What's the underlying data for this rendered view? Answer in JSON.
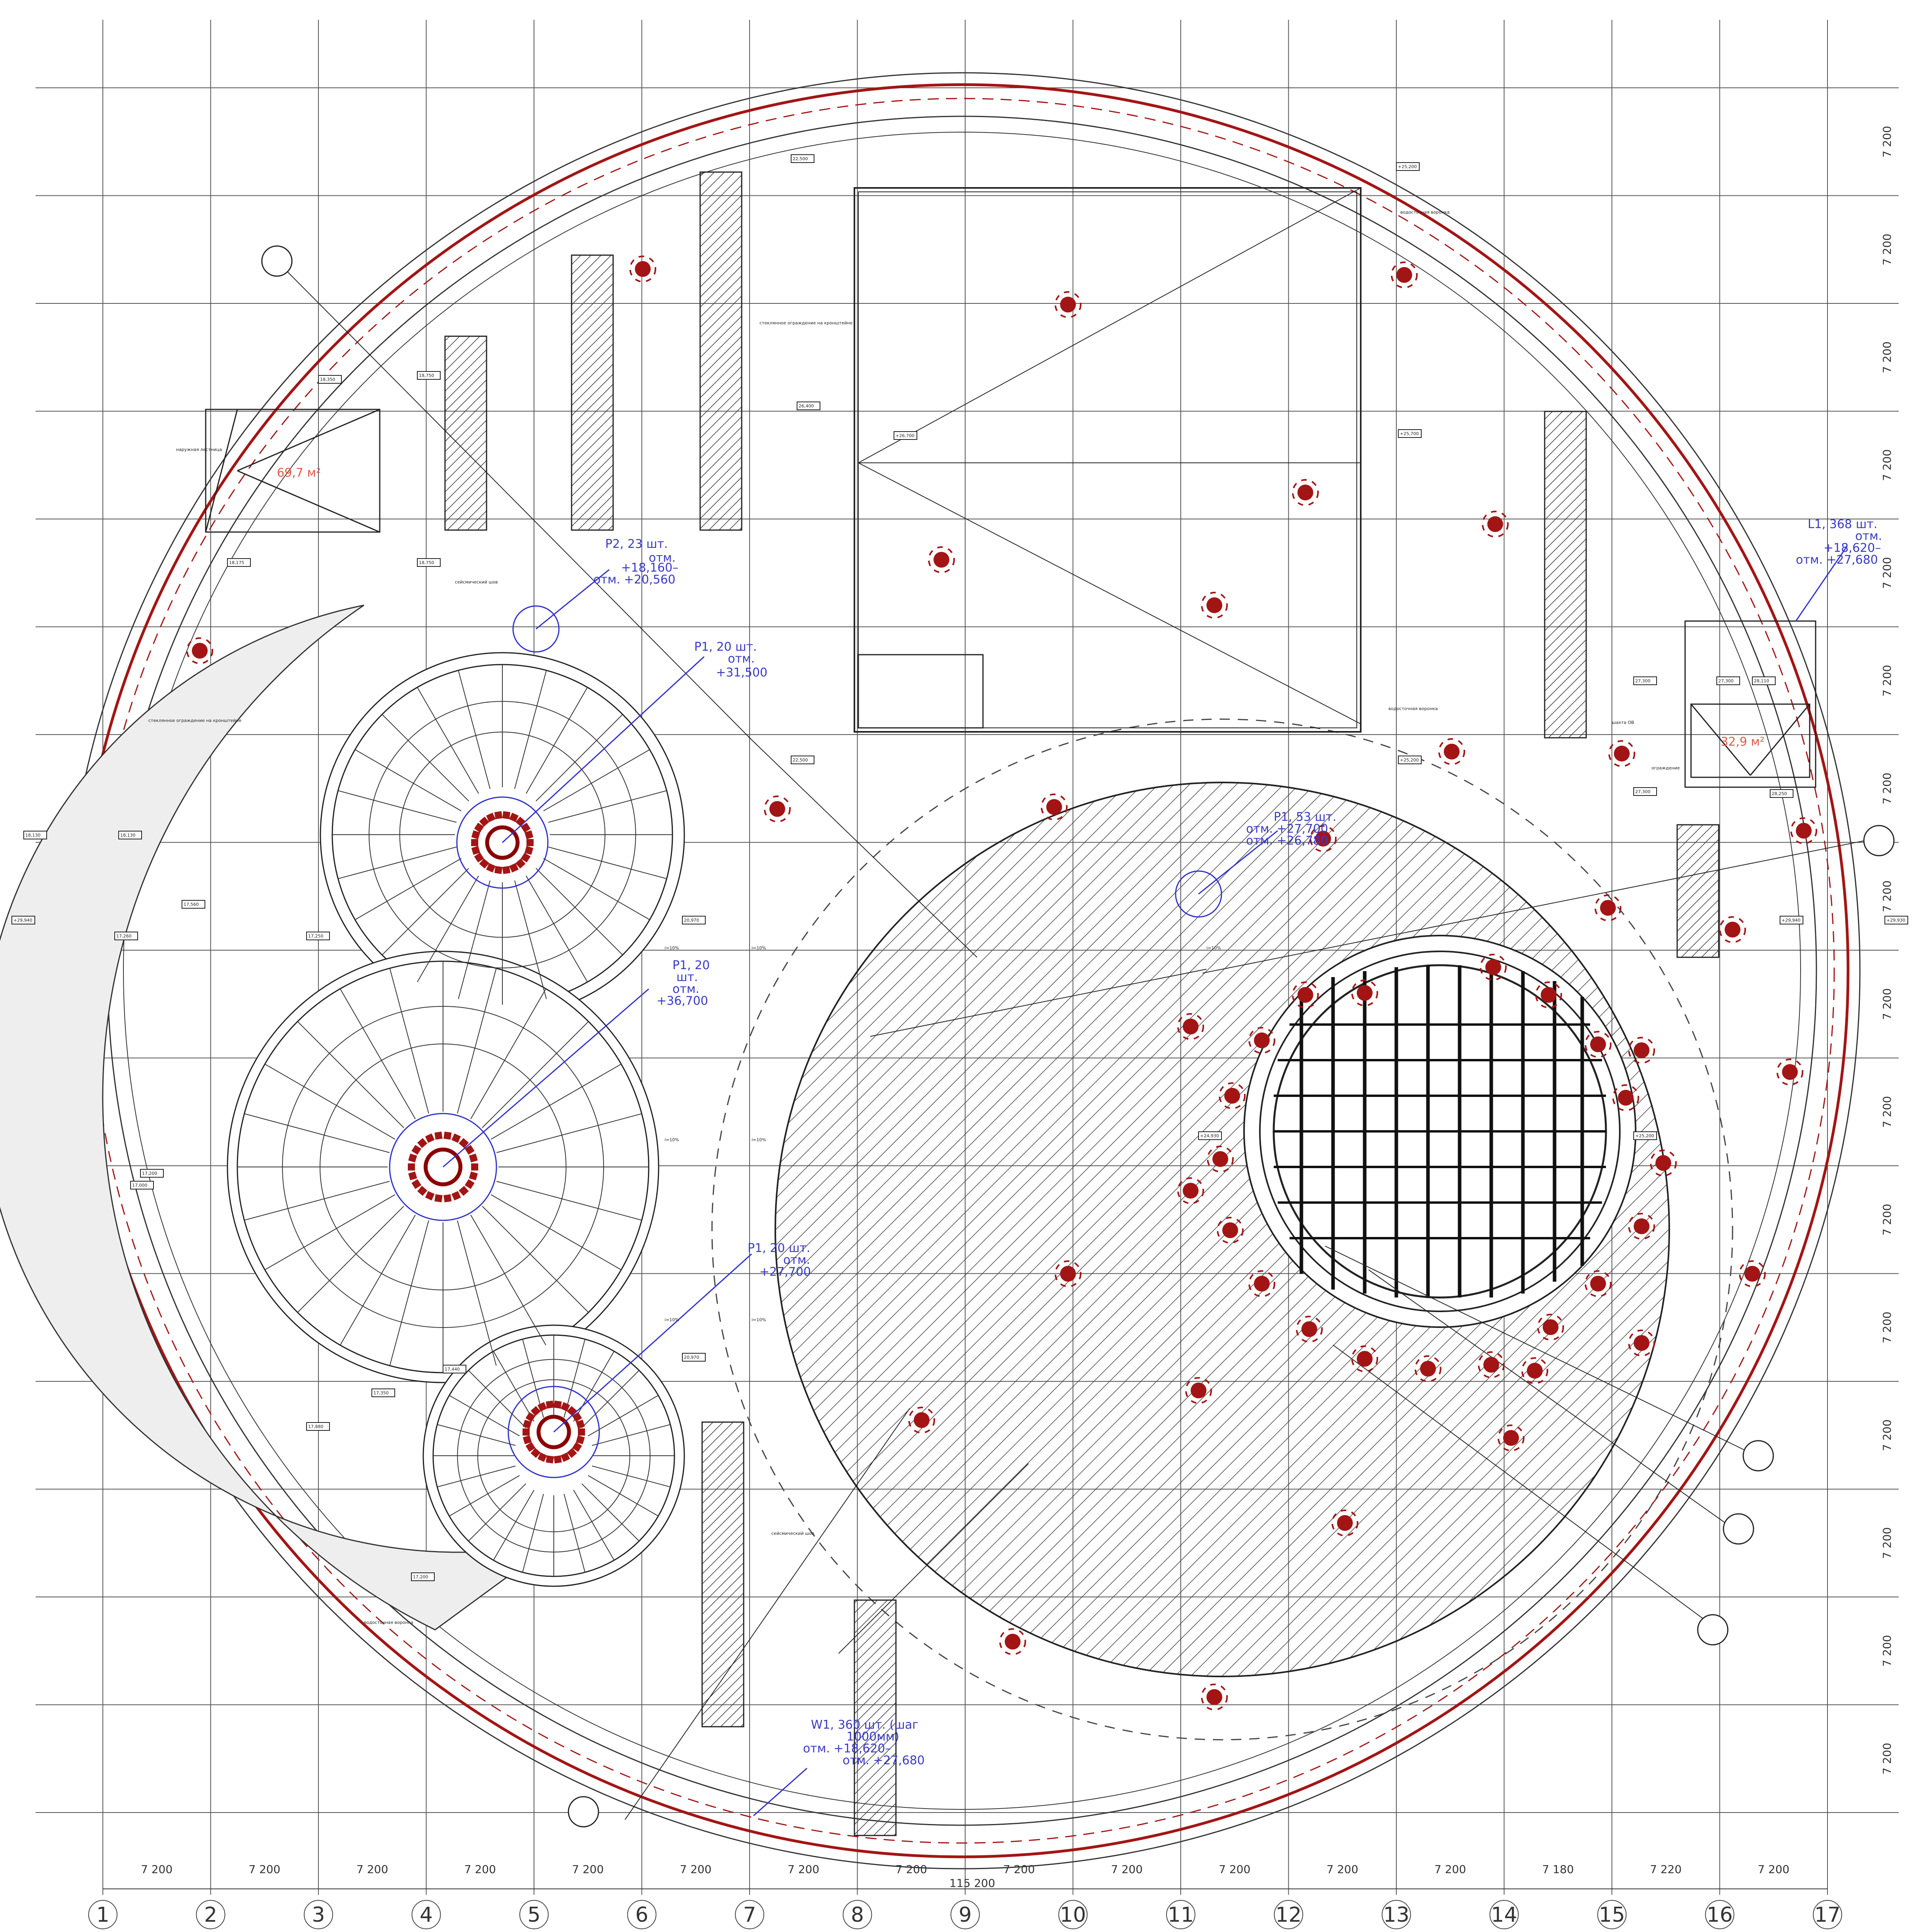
{
  "axes": {
    "columns": [
      "1",
      "2",
      "3",
      "4",
      "5",
      "6",
      "7",
      "8",
      "9",
      "10",
      "11",
      "12",
      "13",
      "14",
      "15",
      "16",
      "17"
    ],
    "spans": [
      "7 200",
      "7 200",
      "7 200",
      "7 200",
      "7 200",
      "7 200",
      "7 200",
      "7 200",
      "7 200",
      "7 200",
      "7 200",
      "7 200",
      "7 200",
      "7 180",
      "7 220",
      "7 200"
    ],
    "total": "115 200",
    "row_spans": [
      "7 200",
      "7 200",
      "7 200",
      "7 200",
      "7 200",
      "7 200",
      "7 200",
      "7 200",
      "7 200",
      "7 200",
      "7 200",
      "7 200",
      "7 200",
      "7 200",
      "7 200",
      "7 200"
    ]
  },
  "callouts": {
    "p2": [
      "P2, 23 шт.",
      "отм.",
      "+18,160–",
      "отм. +20,560"
    ],
    "p1_top": [
      "P1, 20 шт.",
      "отм.",
      "+31,500"
    ],
    "p1_mid": [
      "P1, 20",
      "шт.",
      "отм.",
      "+36,700"
    ],
    "p1_bot": [
      "P1, 20 шт.",
      "отм.",
      "+27,700"
    ],
    "center": [
      "P1, 53 шт.",
      "отм. +27,700",
      "отм. +26,780"
    ],
    "l1": [
      "L1, 368 шт.",
      "отм.",
      "+18,620–",
      "отм. +27,680"
    ],
    "w1": [
      "W1, 360 шт. (шаг",
      "1000мм)",
      "отм. +18,620–",
      "отм. +27,680"
    ]
  },
  "areas": {
    "left": "69,7 м²",
    "right": "32,9 м²"
  },
  "elevations": [
    "22,500",
    "+25,200",
    "26,400",
    "+26,700",
    "+25,700",
    "22,500",
    "+25,200",
    "18,350",
    "18,750",
    "18,175",
    "18,750",
    "17,250",
    "18,130",
    "18,130",
    "17,560",
    "17,260",
    "+29,940",
    "20,970",
    "20,970",
    "17,200",
    "17,000",
    "17,440",
    "17,350",
    "17,880",
    "17,200",
    "27,300",
    "27,300",
    "28,110",
    "27,300",
    "28,250",
    "+24,930",
    "+25,200",
    "+29,940",
    "+29,930"
  ],
  "notes": {
    "seismic": "сейсмический шов",
    "gutter": "водосточная воронка",
    "slope": "i=10%",
    "shaft": "шахта ОВ",
    "staircase": "наружная лестница",
    "edge": "ограждение",
    "glazing": "стеклянное ограждение на кронштейне"
  },
  "colors": {
    "line": "#222222",
    "hatch": "#444444",
    "red": "#a31515",
    "blue": "#2f2fd0",
    "grey_fill": "#eeeeee"
  }
}
